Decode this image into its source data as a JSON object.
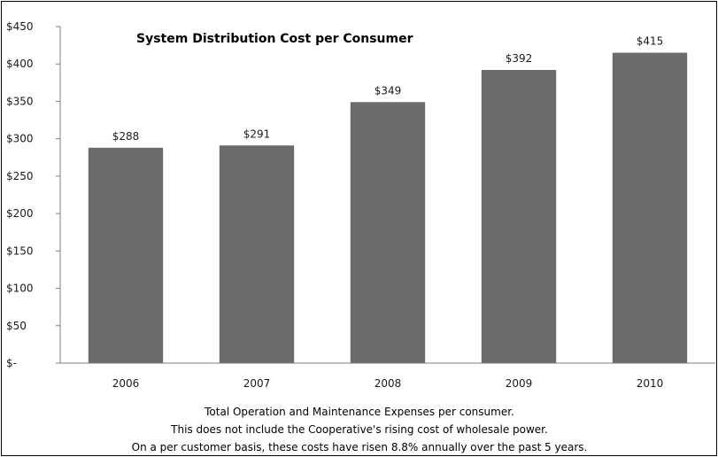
{
  "chart_data": {
    "type": "bar",
    "title": "System Distribution Cost per Consumer",
    "xlabel": "",
    "ylabel": "",
    "categories": [
      "2006",
      "2007",
      "2008",
      "2009",
      "2010"
    ],
    "values": [
      288,
      291,
      349,
      392,
      415
    ],
    "data_labels": [
      "$288",
      "$291",
      "$349",
      "$392",
      "$415"
    ],
    "ylim": [
      0,
      450
    ],
    "y_ticks": [
      0,
      50,
      100,
      150,
      200,
      250,
      300,
      350,
      400,
      450
    ],
    "y_tick_labels": [
      "$-",
      "$50",
      "$100",
      "$150",
      "$200",
      "$250",
      "$300",
      "$350",
      "$400",
      "$450"
    ],
    "grid": false,
    "legend": "none",
    "bar_color": "#6b6b6b",
    "notes": [
      "Total Operation and Maintenance  Expenses per consumer.",
      "This does not include the Cooperative's rising cost of wholesale power.",
      "On a per customer basis, these costs have risen 8.8% annually over the past 5 years."
    ]
  }
}
